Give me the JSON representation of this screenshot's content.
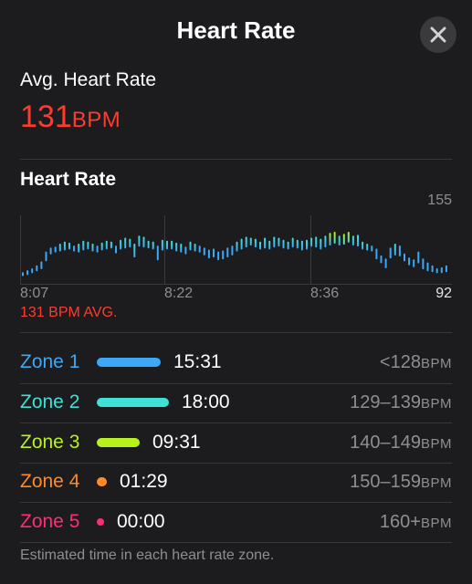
{
  "header": {
    "title": "Heart Rate",
    "close_icon": "close-icon"
  },
  "average": {
    "label": "Avg. Heart Rate",
    "value": "131",
    "unit": "BPM"
  },
  "chart_section": {
    "title": "Heart Rate",
    "max_label": "155",
    "min_label": "92",
    "time_labels": [
      "8:07",
      "8:22",
      "8:36"
    ],
    "avg_note": "131 BPM AVG."
  },
  "chart_data": {
    "type": "bar",
    "title": "",
    "y_range": [
      92,
      155
    ],
    "x_labels": [
      "8:07",
      "8:22",
      "8:36"
    ],
    "bars": [
      [
        97,
        101
      ],
      [
        98,
        103
      ],
      [
        100,
        105
      ],
      [
        102,
        108
      ],
      [
        104,
        112
      ],
      [
        112,
        122
      ],
      [
        119,
        126
      ],
      [
        121,
        127
      ],
      [
        122,
        130
      ],
      [
        123,
        132
      ],
      [
        124,
        131
      ],
      [
        122,
        128
      ],
      [
        121,
        130
      ],
      [
        123,
        133
      ],
      [
        124,
        132
      ],
      [
        122,
        130
      ],
      [
        121,
        128
      ],
      [
        123,
        131
      ],
      [
        124,
        133
      ],
      [
        125,
        132
      ],
      [
        120,
        128
      ],
      [
        124,
        134
      ],
      [
        125,
        136
      ],
      [
        126,
        135
      ],
      [
        116,
        130
      ],
      [
        127,
        138
      ],
      [
        126,
        137
      ],
      [
        125,
        133
      ],
      [
        124,
        132
      ],
      [
        113,
        128
      ],
      [
        123,
        134
      ],
      [
        124,
        133
      ],
      [
        124,
        133
      ],
      [
        122,
        131
      ],
      [
        121,
        130
      ],
      [
        119,
        127
      ],
      [
        123,
        132
      ],
      [
        122,
        130
      ],
      [
        121,
        128
      ],
      [
        118,
        126
      ],
      [
        115,
        124
      ],
      [
        116,
        125
      ],
      [
        113,
        122
      ],
      [
        114,
        123
      ],
      [
        116,
        126
      ],
      [
        118,
        128
      ],
      [
        122,
        132
      ],
      [
        124,
        135
      ],
      [
        126,
        137
      ],
      [
        128,
        136
      ],
      [
        126,
        135
      ],
      [
        124,
        132
      ],
      [
        125,
        136
      ],
      [
        124,
        133
      ],
      [
        126,
        137
      ],
      [
        127,
        136
      ],
      [
        125,
        134
      ],
      [
        124,
        132
      ],
      [
        126,
        136
      ],
      [
        125,
        134
      ],
      [
        123,
        133
      ],
      [
        124,
        134
      ],
      [
        127,
        136
      ],
      [
        126,
        137
      ],
      [
        124,
        135
      ],
      [
        126,
        138
      ],
      [
        128,
        141
      ],
      [
        130,
        142
      ],
      [
        128,
        138
      ],
      [
        129,
        140
      ],
      [
        131,
        142
      ],
      [
        128,
        138
      ],
      [
        127,
        139
      ],
      [
        124,
        132
      ],
      [
        123,
        130
      ],
      [
        122,
        128
      ],
      [
        114,
        125
      ],
      [
        110,
        118
      ],
      [
        105,
        115
      ],
      [
        115,
        126
      ],
      [
        118,
        130
      ],
      [
        117,
        128
      ],
      [
        112,
        120
      ],
      [
        108,
        116
      ],
      [
        106,
        114
      ],
      [
        110,
        122
      ],
      [
        104,
        115
      ],
      [
        102,
        111
      ],
      [
        101,
        108
      ],
      [
        100,
        105
      ],
      [
        100,
        106
      ],
      [
        101,
        108
      ]
    ],
    "zone_colors": [
      "#3da8f5",
      "#3fe0d6",
      "#b6f21c",
      "#ff8a26",
      "#ff2d78"
    ]
  },
  "zones": [
    {
      "name": "Zone 1",
      "time": "15:31",
      "range": "<128",
      "unit": "BPM",
      "color": "#3da8f5",
      "fraction": 1.0
    },
    {
      "name": "Zone 2",
      "time": "18:00",
      "range": "129–139",
      "unit": "BPM",
      "color": "#3fe0d6",
      "fraction": 1.13
    },
    {
      "name": "Zone 3",
      "time": "09:31",
      "range": "140–149",
      "unit": "BPM",
      "color": "#b6f21c",
      "fraction": 0.67
    },
    {
      "name": "Zone 4",
      "time": "01:29",
      "range": "150–159",
      "unit": "BPM",
      "color": "#ff8a26",
      "fraction": 0.15
    },
    {
      "name": "Zone 5",
      "time": "00:00",
      "range": "160+",
      "unit": "BPM",
      "color": "#ff2d78",
      "fraction": 0.0
    }
  ],
  "footer": "Estimated time in each heart rate zone."
}
